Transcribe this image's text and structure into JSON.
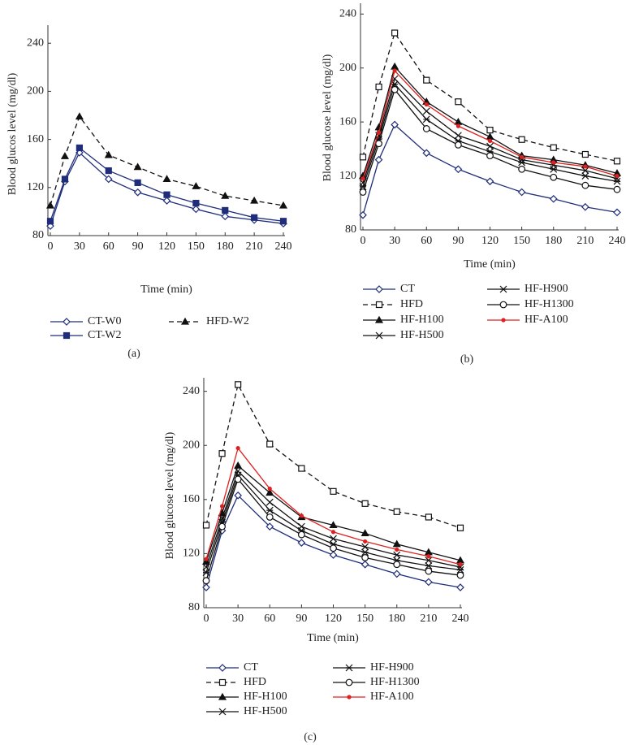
{
  "chart_data": [
    {
      "type": "line",
      "caption": "(a)",
      "x_label": "Time (min)",
      "y_label": "Blood glucos level (mg/dl)",
      "x": [
        0,
        15,
        30,
        60,
        90,
        120,
        150,
        180,
        210,
        240
      ],
      "xlim": [
        0,
        240
      ],
      "xticks": [
        0,
        30,
        60,
        90,
        120,
        150,
        180,
        210,
        240
      ],
      "ylim": [
        80,
        255
      ],
      "yticks": [
        80,
        120,
        160,
        200,
        240
      ],
      "series": [
        {
          "name": "CT-W0",
          "color": "#1f2d7a",
          "dash": false,
          "marker": "diamond",
          "values": [
            88,
            125,
            149,
            127,
            116,
            109,
            102,
            96,
            93,
            90
          ]
        },
        {
          "name": "CT-W2",
          "color": "#1f2d7a",
          "dash": false,
          "marker": "square",
          "values": [
            92,
            127,
            153,
            134,
            124,
            114,
            107,
            101,
            95,
            92
          ]
        },
        {
          "name": "HFD-W2",
          "color": "#111111",
          "dash": true,
          "marker": "triangle",
          "values": [
            105,
            146,
            179,
            147,
            137,
            127,
            121,
            113,
            109,
            105
          ]
        }
      ]
    },
    {
      "type": "line",
      "caption": "(b)",
      "x_label": "Time (min)",
      "y_label": "Blood glucose level (mg/dl)",
      "x": [
        0,
        15,
        30,
        60,
        90,
        120,
        150,
        180,
        210,
        240
      ],
      "xlim": [
        0,
        240
      ],
      "xticks": [
        0,
        30,
        60,
        90,
        120,
        150,
        180,
        210,
        240
      ],
      "ylim": [
        80,
        248
      ],
      "yticks": [
        80,
        120,
        160,
        200,
        240
      ],
      "series": [
        {
          "name": "CT",
          "color": "#1f2d7a",
          "dash": false,
          "marker": "diamond",
          "values": [
            91,
            132,
            158,
            137,
            125,
            116,
            108,
            103,
            97,
            93
          ]
        },
        {
          "name": "HFD",
          "color": "#111111",
          "dash": true,
          "marker": "opensquare",
          "values": [
            134,
            186,
            226,
            191,
            175,
            154,
            147,
            141,
            136,
            131
          ]
        },
        {
          "name": "HF-H100",
          "color": "#111111",
          "dash": false,
          "marker": "triangle",
          "values": [
            120,
            156,
            201,
            175,
            160,
            149,
            135,
            132,
            128,
            122
          ]
        },
        {
          "name": "HF-H500",
          "color": "#111111",
          "dash": false,
          "marker": "cross",
          "values": [
            115,
            150,
            192,
            168,
            150,
            142,
            132,
            128,
            124,
            118
          ]
        },
        {
          "name": "HF-H900",
          "color": "#111111",
          "dash": false,
          "marker": "star",
          "values": [
            112,
            147,
            188,
            162,
            146,
            138,
            130,
            125,
            120,
            116
          ]
        },
        {
          "name": "HF-H1300",
          "color": "#111111",
          "dash": false,
          "marker": "circle",
          "values": [
            108,
            144,
            184,
            155,
            143,
            135,
            125,
            119,
            113,
            110
          ]
        },
        {
          "name": "HF-A100",
          "color": "#e02020",
          "dash": false,
          "marker": "dot",
          "values": [
            118,
            152,
            198,
            173,
            157,
            146,
            134,
            130,
            127,
            120
          ]
        }
      ]
    },
    {
      "type": "line",
      "caption": "(c)",
      "x_label": "Time (min)",
      "y_label": "Blood glucose level (mg/dl)",
      "x": [
        0,
        15,
        30,
        60,
        90,
        120,
        150,
        180,
        210,
        240
      ],
      "xlim": [
        0,
        240
      ],
      "xticks": [
        0,
        30,
        60,
        90,
        120,
        150,
        180,
        210,
        240
      ],
      "ylim": [
        80,
        250
      ],
      "yticks": [
        80,
        120,
        160,
        200,
        240
      ],
      "series": [
        {
          "name": "CT",
          "color": "#1f2d7a",
          "dash": false,
          "marker": "diamond",
          "values": [
            95,
            137,
            163,
            140,
            128,
            119,
            112,
            105,
            99,
            95
          ]
        },
        {
          "name": "HFD",
          "color": "#111111",
          "dash": true,
          "marker": "opensquare",
          "values": [
            141,
            194,
            245,
            201,
            183,
            166,
            157,
            151,
            147,
            139
          ]
        },
        {
          "name": "HF-H100",
          "color": "#111111",
          "dash": false,
          "marker": "triangle",
          "values": [
            114,
            150,
            185,
            165,
            147,
            141,
            135,
            127,
            121,
            115
          ]
        },
        {
          "name": "HF-H500",
          "color": "#111111",
          "dash": false,
          "marker": "cross",
          "values": [
            110,
            146,
            181,
            158,
            140,
            131,
            125,
            119,
            115,
            110
          ]
        },
        {
          "name": "HF-H900",
          "color": "#111111",
          "dash": false,
          "marker": "star",
          "values": [
            106,
            143,
            178,
            152,
            137,
            127,
            121,
            115,
            111,
            108
          ]
        },
        {
          "name": "HF-H1300",
          "color": "#111111",
          "dash": false,
          "marker": "circle",
          "values": [
            100,
            140,
            175,
            147,
            134,
            124,
            117,
            112,
            107,
            104
          ]
        },
        {
          "name": "HF-A100",
          "color": "#e02020",
          "dash": false,
          "marker": "dot",
          "values": [
            116,
            155,
            198,
            168,
            148,
            136,
            129,
            123,
            118,
            112
          ]
        }
      ]
    }
  ]
}
